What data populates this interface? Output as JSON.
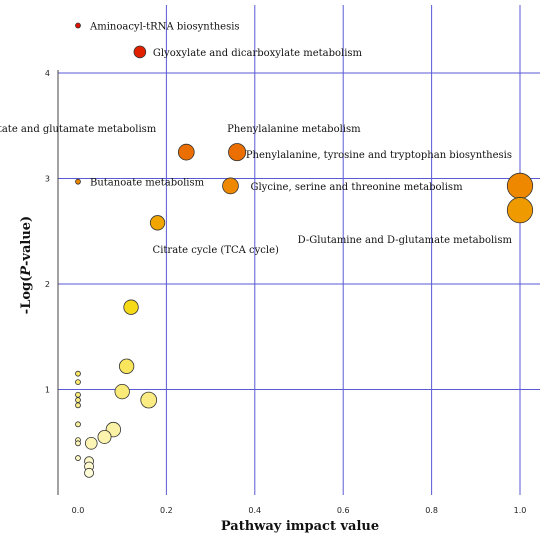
{
  "chart_data": {
    "type": "scatter",
    "title": "",
    "xlabel": "Pathway impact value",
    "ylabel": "-Log(P-value)",
    "xlim": [
      0,
      1
    ],
    "ylim": [
      0,
      4.5
    ],
    "grid": true,
    "grid_color": "#5a5ad6",
    "xticks": [
      "0.0",
      "0.2",
      "0.4",
      "0.6",
      "0.8",
      "1.0"
    ],
    "yticks": [
      "1",
      "2",
      "3",
      "4"
    ],
    "colors": {
      "low": "#fffff0",
      "mid": "#f5d600",
      "high": "#e01000"
    },
    "points": [
      {
        "x": 0.0,
        "y": 4.45,
        "size": 1
      },
      {
        "x": 0.14,
        "y": 4.2,
        "size": 2
      },
      {
        "x": 0.245,
        "y": 3.25,
        "size": 2.6
      },
      {
        "x": 0.36,
        "y": 3.25,
        "size": 2.8
      },
      {
        "x": 0.0,
        "y": 2.97,
        "size": 1
      },
      {
        "x": 0.345,
        "y": 2.93,
        "size": 2.6
      },
      {
        "x": 1.0,
        "y": 2.93,
        "size": 4
      },
      {
        "x": 1.0,
        "y": 2.7,
        "size": 4
      },
      {
        "x": 0.18,
        "y": 2.58,
        "size": 2.4
      },
      {
        "x": 0.12,
        "y": 1.78,
        "size": 2.4
      },
      {
        "x": 0.11,
        "y": 1.22,
        "size": 2.4
      },
      {
        "x": 0.0,
        "y": 1.15,
        "size": 1
      },
      {
        "x": 0.0,
        "y": 1.07,
        "size": 1
      },
      {
        "x": 0.1,
        "y": 0.98,
        "size": 2.4
      },
      {
        "x": 0.0,
        "y": 0.95,
        "size": 1
      },
      {
        "x": 0.0,
        "y": 0.9,
        "size": 1
      },
      {
        "x": 0.0,
        "y": 0.85,
        "size": 1
      },
      {
        "x": 0.16,
        "y": 0.9,
        "size": 2.6
      },
      {
        "x": 0.0,
        "y": 0.67,
        "size": 1
      },
      {
        "x": 0.08,
        "y": 0.62,
        "size": 2.4
      },
      {
        "x": 0.06,
        "y": 0.55,
        "size": 2.2
      },
      {
        "x": 0.0,
        "y": 0.52,
        "size": 1
      },
      {
        "x": 0.0,
        "y": 0.49,
        "size": 1
      },
      {
        "x": 0.03,
        "y": 0.49,
        "size": 2
      },
      {
        "x": 0.0,
        "y": 0.35,
        "size": 1
      },
      {
        "x": 0.025,
        "y": 0.32,
        "size": 1.6
      },
      {
        "x": 0.025,
        "y": 0.27,
        "size": 1.6
      },
      {
        "x": 0.025,
        "y": 0.21,
        "size": 1.6
      }
    ],
    "annotations": [
      {
        "text": "Aminoacyl-tRNA biosynthesis",
        "point": 0
      },
      {
        "text": "Glyoxylate and dicarboxylate metabolism",
        "point": 1
      },
      {
        "text": "Alanine, aspartate and glutamate metabolism",
        "point": 2
      },
      {
        "text": "Phenylalanine metabolism",
        "point": 3
      },
      {
        "text": "Butanoate metabolism",
        "point": 4
      },
      {
        "text": "Glycine, serine and threonine metabolism",
        "point": 5
      },
      {
        "text": "Phenylalanine, tyrosine and tryptophan biosynthesis",
        "point": 6
      },
      {
        "text": "D-Glutamine and D-glutamate metabolism",
        "point": 7
      },
      {
        "text": "Citrate cycle (TCA cycle)",
        "point": 8
      }
    ]
  }
}
